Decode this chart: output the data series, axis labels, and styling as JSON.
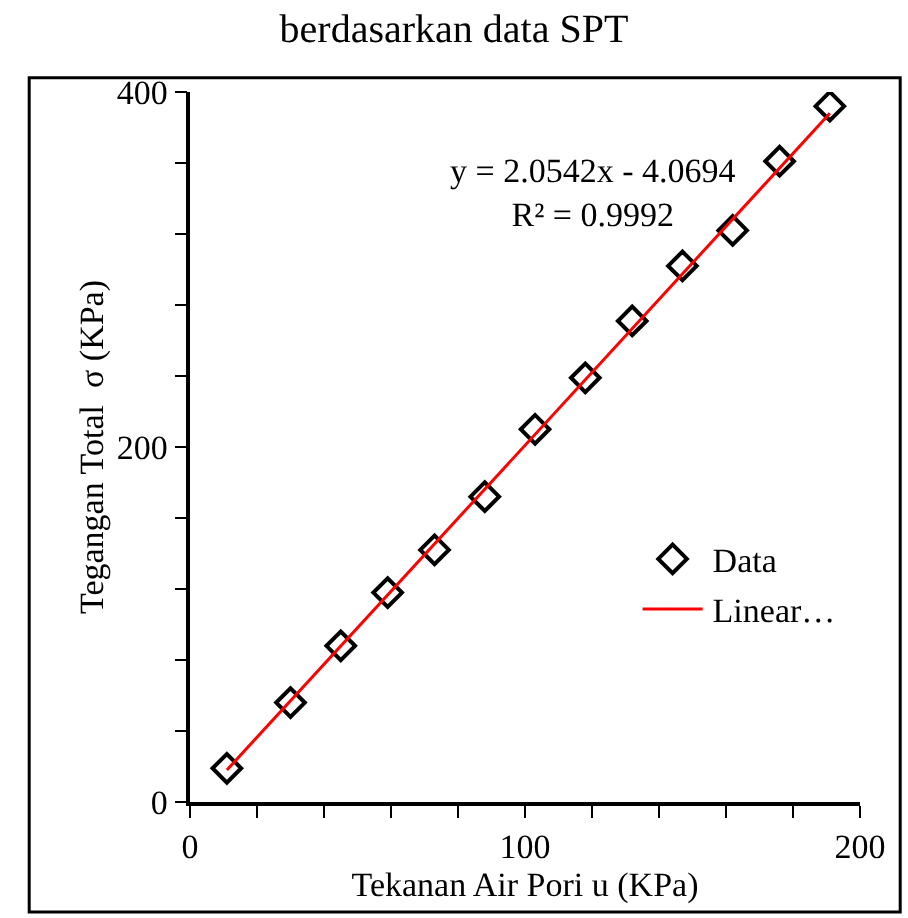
{
  "chart_data": {
    "type": "scatter",
    "title": "berdasarkan data SPT",
    "xlabel": "Tekanan Air Pori u (KPa)",
    "ylabel": "Tegangan Total  σ (KPa)",
    "x": [
      11,
      30,
      45,
      59,
      73,
      88,
      103,
      118,
      132,
      147,
      162,
      176,
      191
    ],
    "series": [
      {
        "name": "Data",
        "type": "scatter",
        "color": "#000000",
        "marker": "diamond",
        "values": [
          19,
          56,
          88,
          118,
          142,
          172,
          210,
          239,
          271,
          302,
          322,
          361,
          392
        ]
      },
      {
        "name": "Linear…",
        "type": "line",
        "color": "#ff0000",
        "marker": "none",
        "line_style": "solid",
        "x": [
          11,
          191
        ],
        "values": [
          18,
          388
        ]
      }
    ],
    "xlim": [
      0,
      200
    ],
    "ylim": [
      0,
      400
    ],
    "xticks": [
      0,
      {
        "value": 20,
        "label": null
      },
      {
        "value": 40,
        "label": null
      },
      {
        "value": 60,
        "label": null
      },
      {
        "value": 80,
        "label": null
      },
      100,
      {
        "value": 120,
        "label": null
      },
      {
        "value": 140,
        "label": null
      },
      {
        "value": 160,
        "label": null
      },
      {
        "value": 180,
        "label": null
      },
      200
    ],
    "yticks": [
      0,
      {
        "value": 40,
        "label": null
      },
      {
        "value": 80,
        "label": null
      },
      {
        "value": 120,
        "label": null
      },
      {
        "value": 160,
        "label": null
      },
      200,
      {
        "value": 240,
        "label": null
      },
      {
        "value": 280,
        "label": null
      },
      {
        "value": 320,
        "label": null
      },
      {
        "value": 360,
        "label": null
      },
      400
    ],
    "annotations": [
      "y = 2.0542x - 4.0694\nR² = 0.9992"
    ],
    "grid": false,
    "legend": "bottom right"
  }
}
